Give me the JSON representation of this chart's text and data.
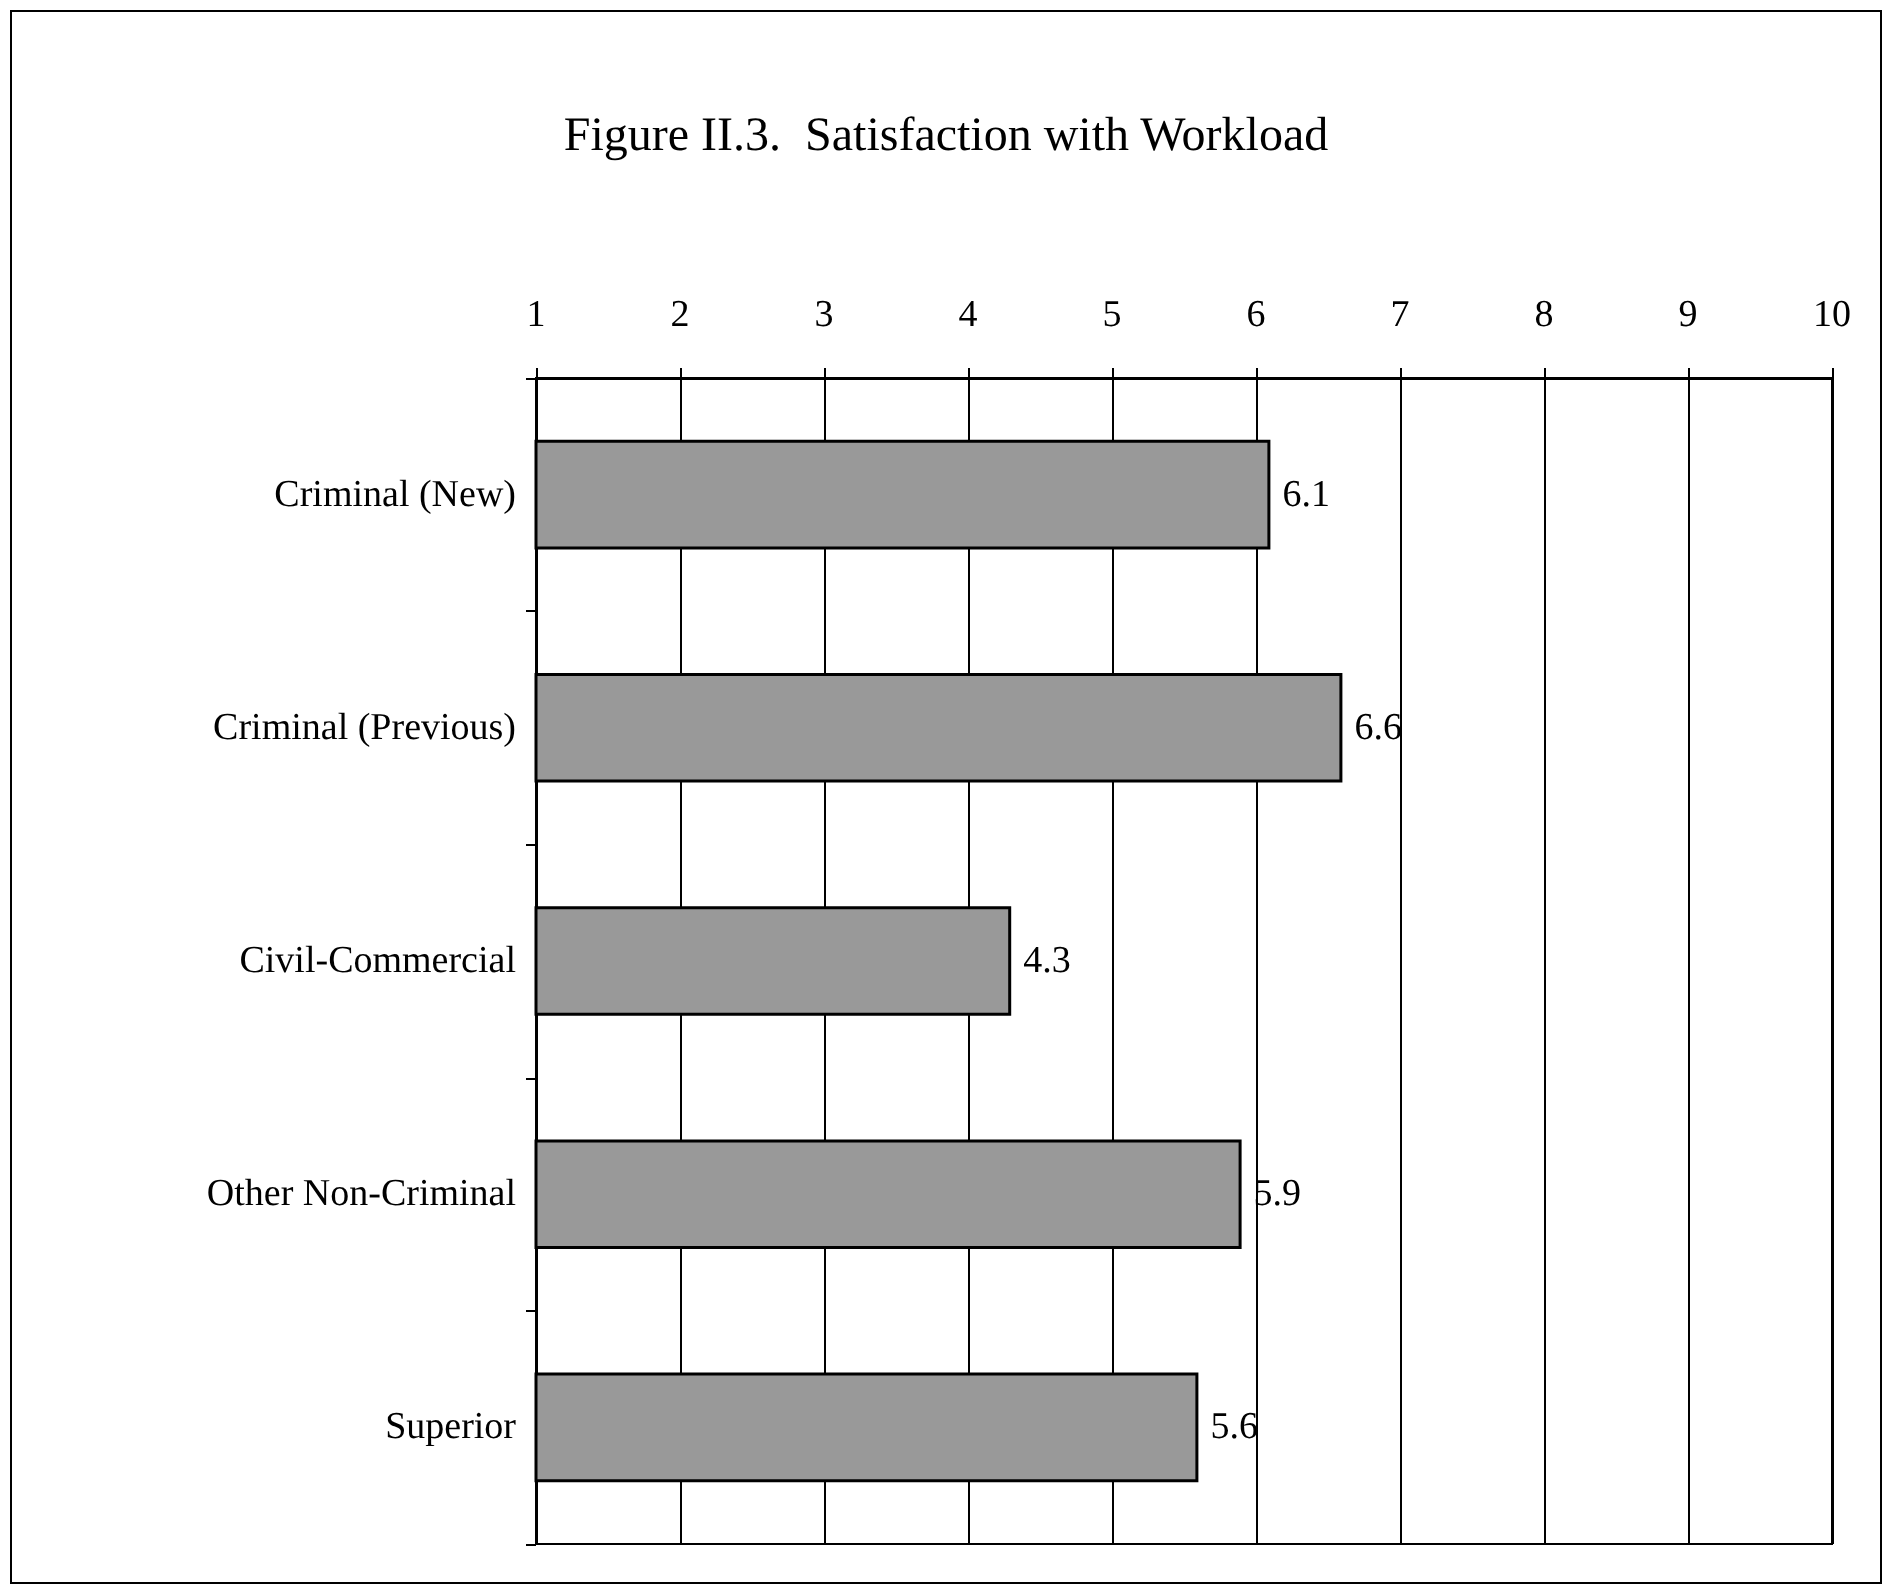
{
  "chart_data": {
    "type": "bar",
    "orientation": "horizontal",
    "title": "Figure II.3.  Satisfaction with Workload",
    "categories": [
      "Criminal (New)",
      "Criminal (Previous)",
      "Civil-Commercial",
      "Other Non-Criminal",
      "Superior"
    ],
    "values": [
      6.1,
      6.6,
      4.3,
      5.9,
      5.6
    ],
    "color": "#999999",
    "xlim": [
      1,
      10
    ],
    "xticks": [
      1,
      2,
      3,
      4,
      5,
      6,
      7,
      8,
      9,
      10
    ],
    "grid": "x",
    "data_labels": true
  }
}
